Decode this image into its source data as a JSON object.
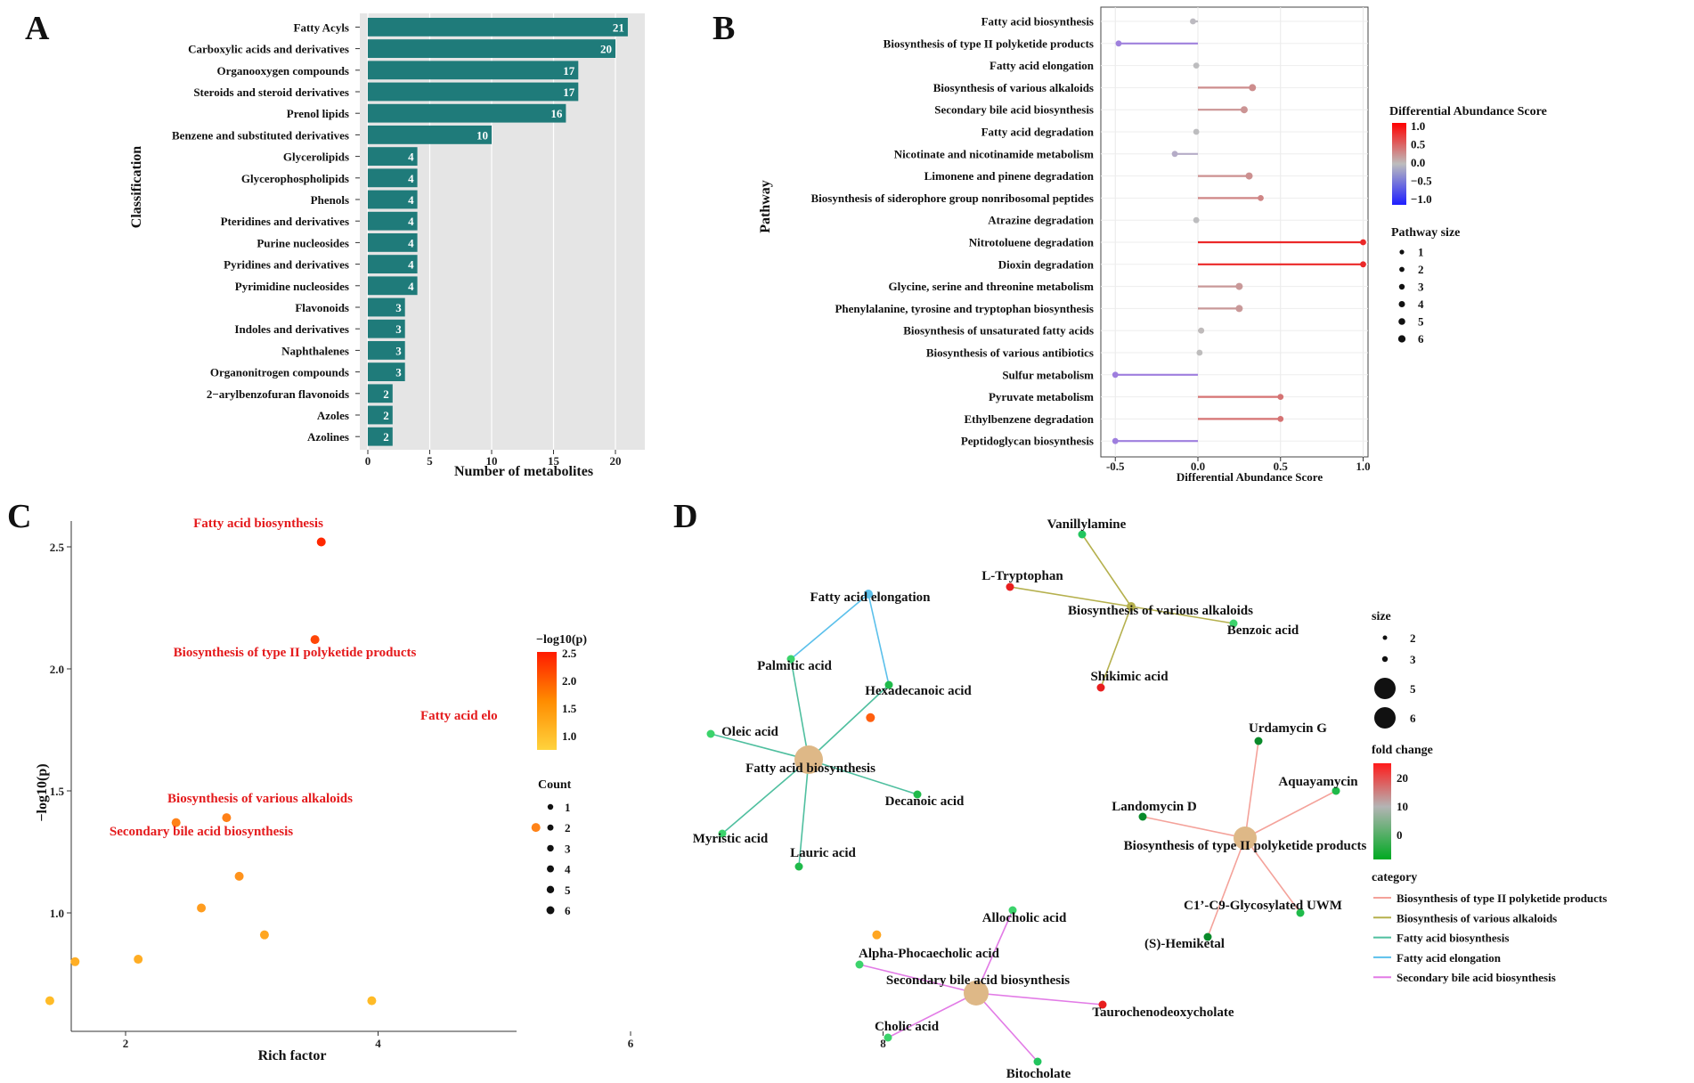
{
  "panels": {
    "a": "A",
    "b": "B",
    "c": "C",
    "d": "D"
  },
  "chart_data": [
    {
      "type": "bar",
      "orientation": "horizontal",
      "categories": [
        "Fatty Acyls",
        "Carboxylic acids and derivatives",
        "Organooxygen compounds",
        "Steroids and steroid derivatives",
        "Prenol lipids",
        "Benzene and substituted derivatives",
        "Glycerolipids",
        "Glycerophospholipids",
        "Phenols",
        "Pteridines and derivatives",
        "Purine nucleosides",
        "Pyridines and derivatives",
        "Pyrimidine nucleosides",
        "Flavonoids",
        "Indoles and derivatives",
        "Naphthalenes",
        "Organonitrogen compounds",
        "2−arylbenzofuran flavonoids",
        "Azoles",
        "Azolines"
      ],
      "values": [
        21,
        20,
        17,
        17,
        16,
        10,
        4,
        4,
        4,
        4,
        4,
        4,
        4,
        3,
        3,
        3,
        3,
        2,
        2,
        2
      ],
      "xlabel": "Number of metabolites",
      "ylabel": "Classification",
      "xlim": [
        0,
        22
      ],
      "xticks": [
        "0",
        "5",
        "10",
        "15",
        "20"
      ],
      "colors": {
        "bar": "#1f7b7a",
        "panel_bg": "#e5e5e5"
      }
    },
    {
      "type": "lollipop",
      "categories": [
        "Fatty acid biosynthesis",
        "Biosynthesis of type II polyketide products",
        "Fatty acid elongation",
        "Biosynthesis of various alkaloids",
        "Secondary bile acid biosynthesis",
        "Fatty acid degradation",
        "Nicotinate and nicotinamide metabolism",
        "Limonene and pinene degradation",
        "Biosynthesis of siderophore group nonribosomal peptides",
        "Atrazine degradation",
        "Nitrotoluene degradation",
        "Dioxin degradation",
        "Glycine, serine and threonine metabolism",
        "Phenylalanine, tyrosine and tryptophan biosynthesis",
        "Biosynthesis of unsaturated fatty acids",
        "Biosynthesis of various antibiotics",
        "Sulfur metabolism",
        "Pyruvate metabolism",
        "Ethylbenzene degradation",
        "Peptidoglycan biosynthesis"
      ],
      "values": [
        -0.03,
        -0.48,
        -0.01,
        0.33,
        0.28,
        -0.01,
        -0.14,
        0.31,
        0.38,
        -0.01,
        1.0,
        1.0,
        0.25,
        0.25,
        0.02,
        0.01,
        -0.5,
        0.5,
        0.5,
        -0.5
      ],
      "sizes": [
        1,
        1,
        1,
        2,
        2,
        1,
        1,
        2,
        1,
        1,
        1,
        1,
        2,
        2,
        1,
        1,
        1,
        1,
        1,
        1
      ],
      "xlabel": "Differential Abundance Score",
      "ylabel": "Pathway",
      "xlim": [
        -0.55,
        1.05
      ],
      "xticks": [
        "-0.5",
        "0.0",
        "0.5",
        "1.0"
      ],
      "color_legend": {
        "title": "Differential Abundance Score",
        "labels": [
          "1.0",
          "0.5",
          "0.0",
          "−0.5",
          "−1.0"
        ]
      },
      "size_legend": {
        "title": "Pathway size",
        "labels": [
          "1",
          "2",
          "3",
          "4",
          "5",
          "6"
        ]
      }
    },
    {
      "type": "scatter",
      "xlabel": "Rich factor",
      "ylabel": "−log10(p)",
      "xlim": [
        1.2,
        8.2
      ],
      "ylim": [
        0.58,
        2.58
      ],
      "xticks": [
        "2",
        "4",
        "6",
        "8"
      ],
      "yticks": [
        "1.0",
        "1.5",
        "2.0",
        "2.5"
      ],
      "points": [
        {
          "x": 3.55,
          "y": 2.52,
          "label": "Fatty acid biosynthesis"
        },
        {
          "x": 3.5,
          "y": 2.12,
          "label": "Biosynthesis of type II polyketide products"
        },
        {
          "x": 7.9,
          "y": 1.8,
          "label": "Fatty acid elongation"
        },
        {
          "x": 2.8,
          "y": 1.39,
          "label": "Biosynthesis of various alkaloids"
        },
        {
          "x": 2.4,
          "y": 1.37,
          "label": "Secondary bile acid biosynthesis"
        },
        {
          "x": 5.25,
          "y": 1.35,
          "label": ""
        },
        {
          "x": 2.9,
          "y": 1.15,
          "label": ""
        },
        {
          "x": 2.6,
          "y": 1.02,
          "label": ""
        },
        {
          "x": 3.1,
          "y": 0.91,
          "label": ""
        },
        {
          "x": 7.95,
          "y": 0.91,
          "label": ""
        },
        {
          "x": 2.1,
          "y": 0.81,
          "label": ""
        },
        {
          "x": 1.6,
          "y": 0.8,
          "label": ""
        },
        {
          "x": 1.4,
          "y": 0.64,
          "label": ""
        },
        {
          "x": 3.95,
          "y": 0.64,
          "label": ""
        }
      ],
      "visible_labels": [
        "Fatty acid biosynthesis",
        "Biosynthesis of type II polyketide products",
        "Fatty acid elo",
        "Biosynthesis of various alkaloids",
        "Secondary bile acid biosynthesis"
      ],
      "color_legend": {
        "title": "−log10(p)",
        "labels": [
          "2.5",
          "2.0",
          "1.5",
          "1.0"
        ]
      },
      "size_legend": {
        "title": "Count",
        "labels": [
          "1",
          "2",
          "3",
          "4",
          "5",
          "6"
        ]
      }
    },
    {
      "type": "network",
      "hubs": [
        "Fatty acid elongation",
        "Biosynthesis of various alkaloids",
        "Fatty acid biosynthesis",
        "Biosynthesis of type II polyketide products",
        "Secondary bile acid biosynthesis"
      ],
      "metabolites": [
        "Vanillylamine",
        "L-Tryptophan",
        "Benzoic acid",
        "Shikimic acid",
        "Palmitic acid",
        "Hexadecanoic acid",
        "Oleic acid",
        "Decanoic acid",
        "Myristic acid",
        "Lauric acid",
        "Urdamycin G",
        "Aquayamycin",
        "Landomycin D",
        "C1’-C9-Glycosylated UWM",
        "(S)-Hemiketal",
        "Allocholic acid",
        "Alpha-Phocaecholic acid",
        "Taurochenodeoxycholate",
        "Cholic acid",
        "Bitocholate"
      ],
      "size_legend": {
        "title": "size",
        "labels": [
          "2",
          "3",
          "5",
          "6"
        ]
      },
      "fold_legend": {
        "title": "fold change",
        "labels": [
          "20",
          "10",
          "0"
        ]
      },
      "category_legend": {
        "title": "category",
        "labels": [
          "Biosynthesis of type II polyketide products",
          "Biosynthesis of various alkaloids",
          "Fatty acid biosynthesis",
          "Fatty acid elongation",
          "Secondary bile acid biosynthesis"
        ]
      },
      "colors": {
        "polyketide": "#f4a29a",
        "alkaloids": "#b5b04d",
        "fa_bio": "#4fbf9f",
        "fa_elong": "#5bc0eb",
        "bile": "#e27be6",
        "hub": "#deb887"
      }
    }
  ]
}
